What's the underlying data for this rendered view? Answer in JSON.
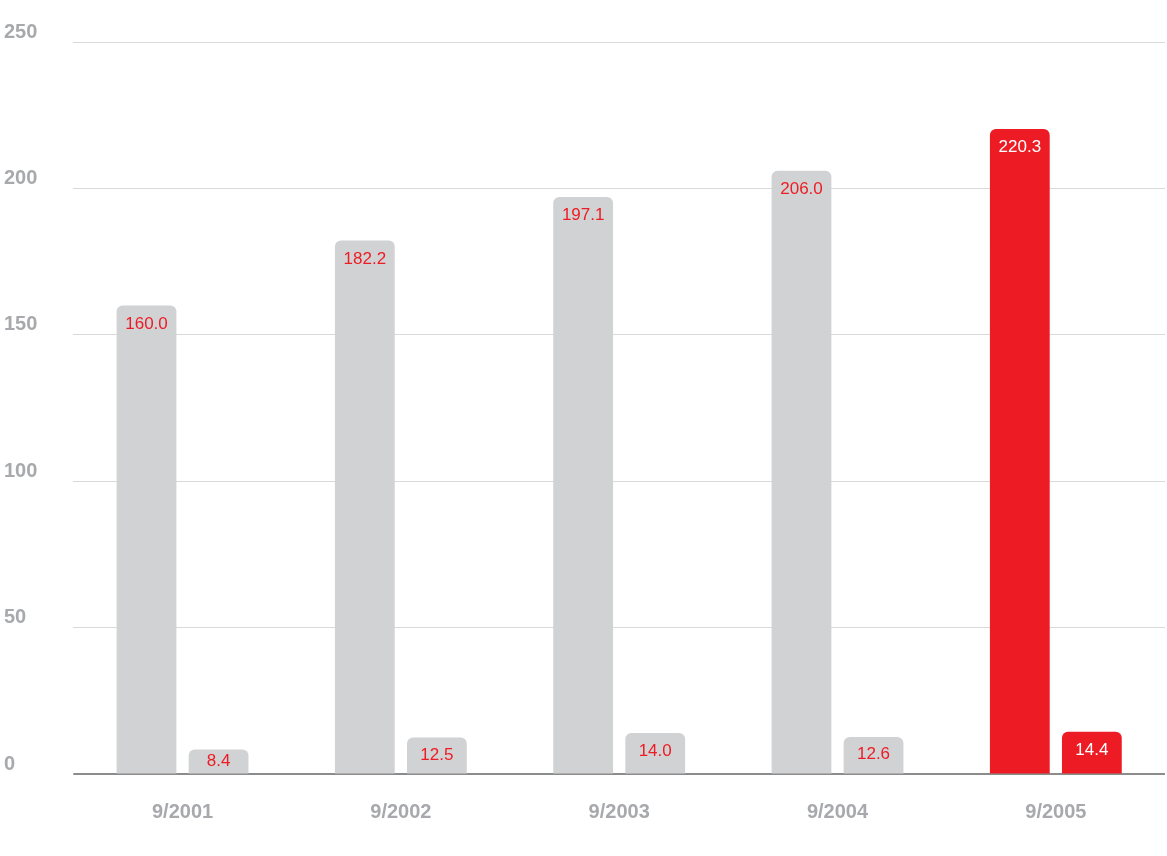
{
  "chart_data": {
    "type": "bar",
    "categories": [
      "9/2001",
      "9/2002",
      "9/2003",
      "9/2004",
      "9/2005"
    ],
    "series": [
      {
        "colors": [
          "#d1d2d4",
          "#d1d2d4",
          "#d1d2d4",
          "#d1d2d4",
          "#ed1c24"
        ],
        "values": [
          160.0,
          182.2,
          197.1,
          206.0,
          220.3
        ],
        "value_labels": [
          "160.0",
          "182.2",
          "197.1",
          "206.0",
          "220.3"
        ]
      },
      {
        "colors": [
          "#d1d2d4",
          "#d1d2d4",
          "#d1d2d4",
          "#d1d2d4",
          "#ed1c24"
        ],
        "values": [
          8.4,
          12.5,
          14.0,
          12.6,
          14.4
        ],
        "value_labels": [
          "8.4",
          "12.5",
          "14.0",
          "12.6",
          "14.4"
        ]
      }
    ],
    "ylim": [
      0,
      250
    ],
    "yticks": [
      0,
      50,
      100,
      150,
      200,
      250
    ],
    "grid": "y",
    "legend": false
  }
}
